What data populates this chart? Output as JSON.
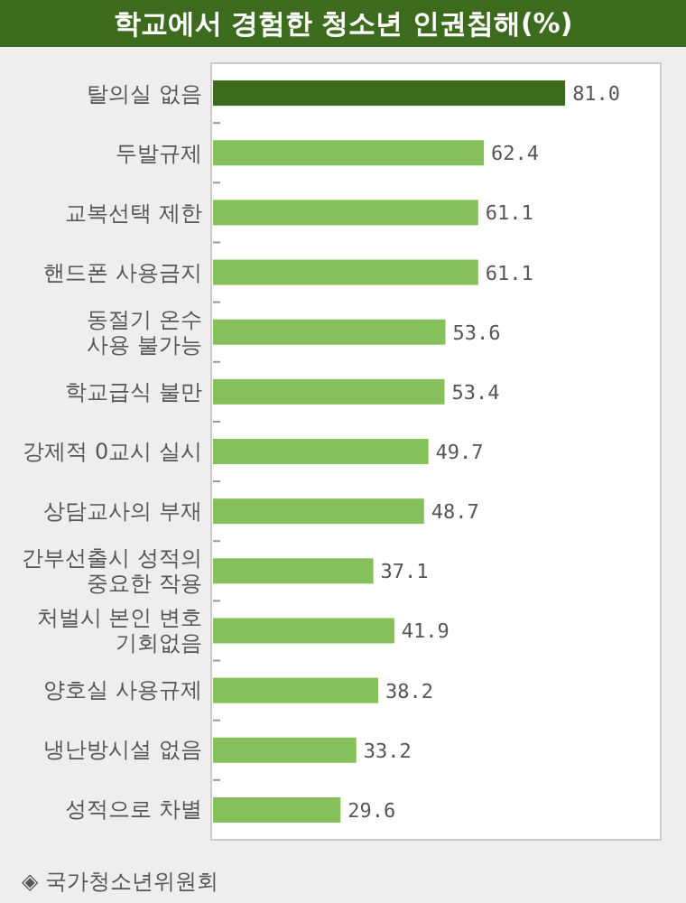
{
  "chart_data": {
    "type": "bar",
    "orientation": "horizontal",
    "title": "학교에서 경험한 청소년 인권침해(%)",
    "categories": [
      "탈의실 없음",
      "두발규제",
      "교복선택 제한",
      "핸드폰 사용금지",
      "동절기 온수\n사용 불가능",
      "학교급식 불만",
      "강제적 0교시 실시",
      "상담교사의 부재",
      "간부선출시 성적의\n중요한 작용",
      "처벌시 본인 변호\n기회없음",
      "양호실 사용규제",
      "냉난방시설 없음",
      "성적으로 차별"
    ],
    "values": [
      81.0,
      62.4,
      61.1,
      61.1,
      53.6,
      53.4,
      49.7,
      48.7,
      37.1,
      41.9,
      38.2,
      33.2,
      29.6
    ],
    "value_labels": [
      "81.0",
      "62.4",
      "61.1",
      "61.1",
      "53.6",
      "53.4",
      "49.7",
      "48.7",
      "37.1",
      "41.9",
      "38.2",
      "33.2",
      "29.6"
    ],
    "colors": [
      "#3d6b1e",
      "#86c05a",
      "#86c05a",
      "#86c05a",
      "#86c05a",
      "#86c05a",
      "#86c05a",
      "#86c05a",
      "#86c05a",
      "#86c05a",
      "#86c05a",
      "#86c05a",
      "#86c05a"
    ],
    "annotations": [
      "◈ 국가청소년위원회"
    ]
  }
}
